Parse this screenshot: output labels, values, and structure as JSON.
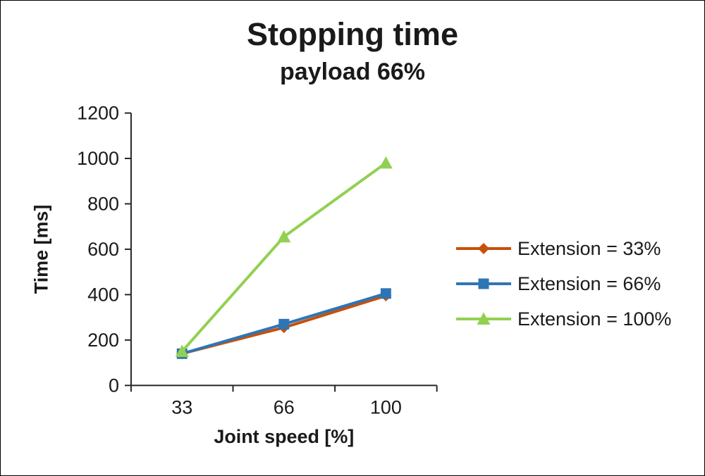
{
  "title": "Stopping time",
  "subtitle": "payload 66%",
  "chart_data": {
    "type": "line",
    "title": "Stopping time",
    "subtitle": "payload 66%",
    "xlabel": "Joint speed [%]",
    "ylabel": "Time [ms]",
    "categories": [
      "33",
      "66",
      "100"
    ],
    "x": [
      33,
      66,
      100
    ],
    "ylim": [
      0,
      1200
    ],
    "yticks": [
      0,
      200,
      400,
      600,
      800,
      1000,
      1200
    ],
    "grid": false,
    "legend_position": "right",
    "series": [
      {
        "name": "Extension = 33%",
        "color": "#C8500A",
        "marker": "diamond",
        "values": [
          140,
          255,
          395
        ]
      },
      {
        "name": "Extension = 66%",
        "color": "#2E75B6",
        "marker": "square",
        "values": [
          140,
          270,
          405
        ]
      },
      {
        "name": "Extension = 100%",
        "color": "#92D050",
        "marker": "triangle",
        "values": [
          150,
          655,
          980
        ]
      }
    ]
  },
  "colors": {
    "axis": "#262626",
    "text": "#1a1a1a"
  }
}
